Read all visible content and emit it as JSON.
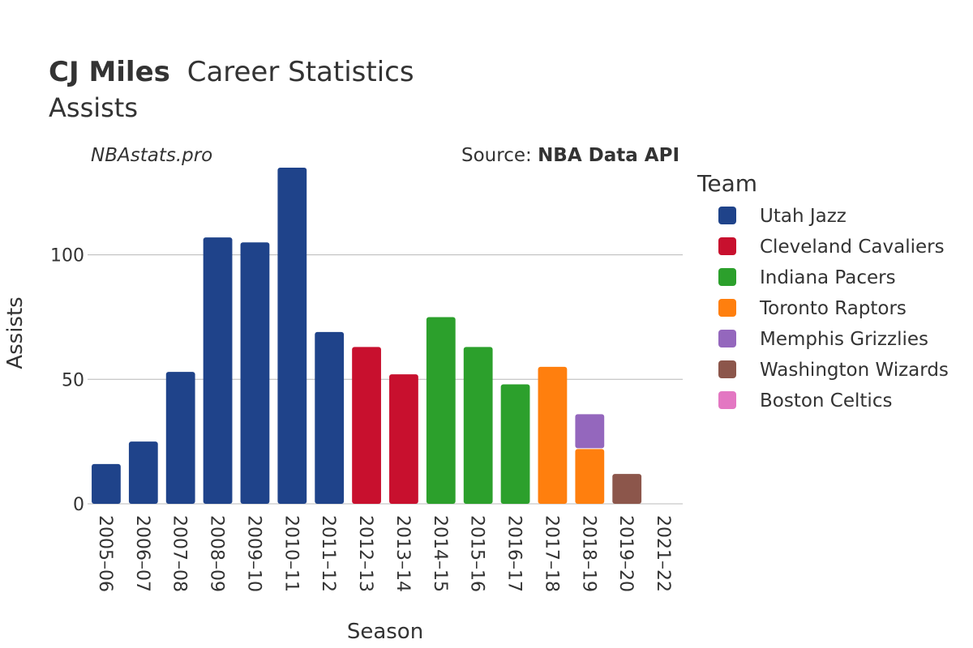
{
  "header": {
    "player_name": "CJ Miles",
    "title_suffix": "Career Statistics",
    "subtitle": "Assists"
  },
  "watermark": "NBAstats.pro",
  "source": {
    "prefix": "Source: ",
    "name": "NBA Data API"
  },
  "chart_data": {
    "type": "bar",
    "stacked": true,
    "xlabel": "Season",
    "ylabel": "Assists",
    "ylim": [
      0,
      135
    ],
    "yticks": [
      0,
      50,
      100
    ],
    "grid": true,
    "legend_title": "Team",
    "legend_position": "right",
    "categories": [
      "2005–06",
      "2006–07",
      "2007–08",
      "2008–09",
      "2009–10",
      "2010–11",
      "2011–12",
      "2012–13",
      "2013–14",
      "2014–15",
      "2015–16",
      "2016–17",
      "2017–18",
      "2018–19",
      "2019–20",
      "2021–22"
    ],
    "series": [
      {
        "name": "Utah Jazz",
        "color": "#1f438a",
        "values": [
          16,
          25,
          53,
          107,
          105,
          135,
          69,
          0,
          0,
          0,
          0,
          0,
          0,
          0,
          0,
          0
        ]
      },
      {
        "name": "Cleveland Cavaliers",
        "color": "#c8102e",
        "values": [
          0,
          0,
          0,
          0,
          0,
          0,
          0,
          63,
          52,
          0,
          0,
          0,
          0,
          0,
          0,
          0
        ]
      },
      {
        "name": "Indiana Pacers",
        "color": "#2ca02c",
        "values": [
          0,
          0,
          0,
          0,
          0,
          0,
          0,
          0,
          0,
          75,
          63,
          48,
          0,
          0,
          0,
          0
        ]
      },
      {
        "name": "Toronto Raptors",
        "color": "#ff7f0e",
        "values": [
          0,
          0,
          0,
          0,
          0,
          0,
          0,
          0,
          0,
          0,
          0,
          0,
          55,
          22,
          0,
          0
        ]
      },
      {
        "name": "Memphis Grizzlies",
        "color": "#9467bd",
        "values": [
          0,
          0,
          0,
          0,
          0,
          0,
          0,
          0,
          0,
          0,
          0,
          0,
          0,
          14,
          0,
          0
        ]
      },
      {
        "name": "Washington Wizards",
        "color": "#8c564b",
        "values": [
          0,
          0,
          0,
          0,
          0,
          0,
          0,
          0,
          0,
          0,
          0,
          0,
          0,
          0,
          12,
          0
        ]
      },
      {
        "name": "Boston Celtics",
        "color": "#e377c2",
        "values": [
          0,
          0,
          0,
          0,
          0,
          0,
          0,
          0,
          0,
          0,
          0,
          0,
          0,
          0,
          0,
          0
        ]
      }
    ]
  }
}
